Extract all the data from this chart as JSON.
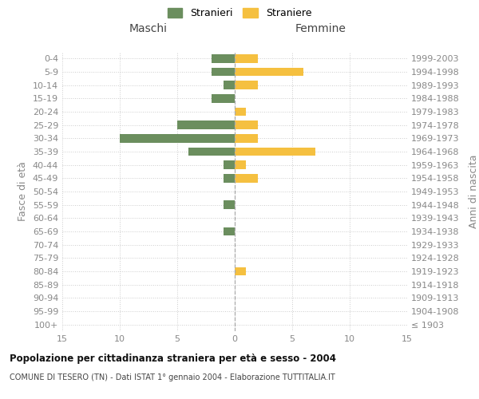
{
  "age_groups": [
    "100+",
    "95-99",
    "90-94",
    "85-89",
    "80-84",
    "75-79",
    "70-74",
    "65-69",
    "60-64",
    "55-59",
    "50-54",
    "45-49",
    "40-44",
    "35-39",
    "30-34",
    "25-29",
    "20-24",
    "15-19",
    "10-14",
    "5-9",
    "0-4"
  ],
  "birth_years": [
    "≤ 1903",
    "1904-1908",
    "1909-1913",
    "1914-1918",
    "1919-1923",
    "1924-1928",
    "1929-1933",
    "1934-1938",
    "1939-1943",
    "1944-1948",
    "1949-1953",
    "1954-1958",
    "1959-1963",
    "1964-1968",
    "1969-1973",
    "1974-1978",
    "1979-1983",
    "1984-1988",
    "1989-1993",
    "1994-1998",
    "1999-2003"
  ],
  "males": [
    0,
    0,
    0,
    0,
    0,
    0,
    0,
    1,
    0,
    1,
    0,
    1,
    1,
    4,
    10,
    5,
    0,
    2,
    1,
    2,
    2
  ],
  "females": [
    0,
    0,
    0,
    0,
    1,
    0,
    0,
    0,
    0,
    0,
    0,
    2,
    1,
    7,
    2,
    2,
    1,
    0,
    2,
    6,
    2
  ],
  "male_color": "#6b8e5e",
  "female_color": "#f5c040",
  "xlim": 15,
  "title": "Popolazione per cittadinanza straniera per età e sesso - 2004",
  "subtitle": "COMUNE DI TESERO (TN) - Dati ISTAT 1° gennaio 2004 - Elaborazione TUTTITALIA.IT",
  "legend_male": "Stranieri",
  "legend_female": "Straniere",
  "left_label": "Maschi",
  "right_label": "Femmine",
  "ylabel_left": "Fasce di età",
  "ylabel_right": "Anni di nascita",
  "background_color": "#ffffff",
  "grid_color": "#cccccc",
  "tick_color": "#888888",
  "xticks": [
    15,
    10,
    5,
    0,
    5,
    10,
    15
  ]
}
